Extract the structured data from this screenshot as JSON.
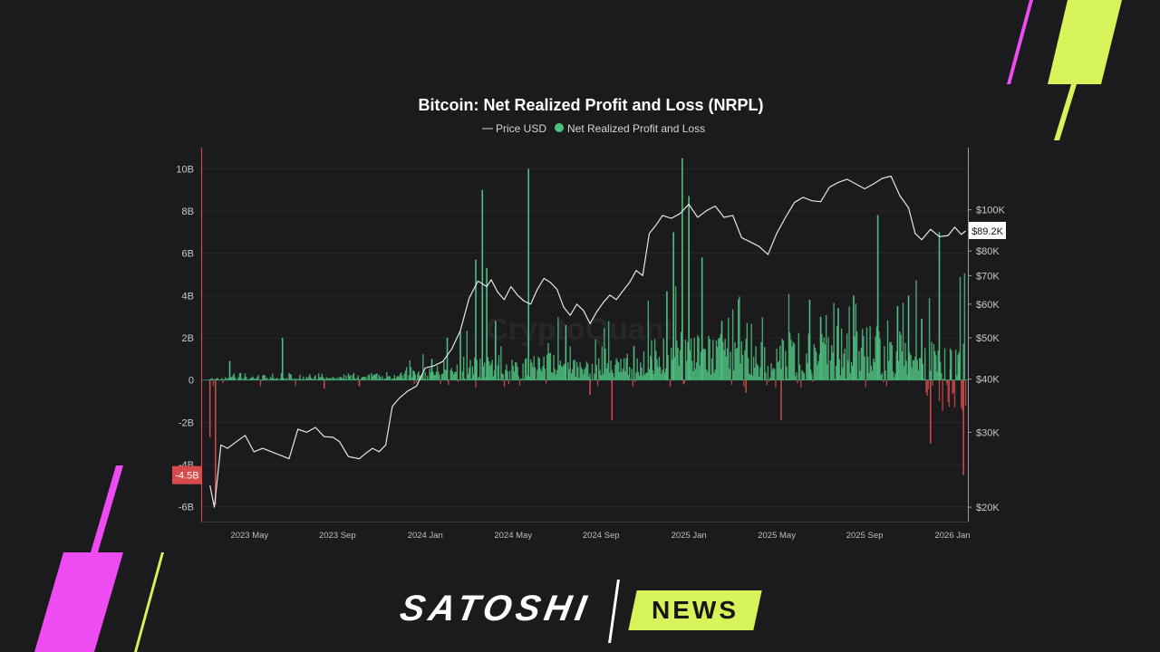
{
  "brand": {
    "name_part1": "SATOSHI",
    "name_part2": "NEWS",
    "colors": {
      "accent_lime": "#d6f35a",
      "accent_magenta": "#ee4bf2"
    }
  },
  "watermark": "CryptoQuant",
  "chart_data": {
    "type": "bar",
    "title": "Bitcoin: Net Realized Profit and Loss (NRPL)",
    "legend": [
      {
        "label": "Price USD",
        "marker": "line",
        "color": "#e5e5e5"
      },
      {
        "label": "Net Realized Profit and Loss",
        "marker": "dot",
        "color": "#4fbf7f"
      }
    ],
    "left_axis": {
      "ticks": [
        "10B",
        "8B",
        "6B",
        "4B",
        "2B",
        "0",
        "-2B",
        "-4B",
        "-6B"
      ],
      "tick_values": [
        10,
        8,
        6,
        4,
        2,
        0,
        -2,
        -4,
        -6
      ],
      "range": [
        -6.7,
        11
      ],
      "unit": "billion USD",
      "highlight_label": "-4.5B",
      "highlight_value": -4.5
    },
    "right_axis": {
      "ticks": [
        "$100K",
        "$80K",
        "$70K",
        "$60K",
        "$50K",
        "$40K",
        "$30K",
        "$20K"
      ],
      "tick_values": [
        100000,
        80000,
        70000,
        60000,
        50000,
        40000,
        30000,
        20000
      ],
      "scale": "log",
      "range": [
        18500,
        140000
      ],
      "current_price_label": "$89.2K",
      "current_price": 89200
    },
    "x_axis": {
      "ticks": [
        "2023 May",
        "2023 Sep",
        "2024 Jan",
        "2024 May",
        "2024 Sep",
        "2025 Jan",
        "2025 May",
        "2025 Sep",
        "2026 Jan"
      ],
      "tick_months": [
        4,
        8,
        12,
        16,
        20,
        24,
        28,
        32,
        36
      ],
      "month_range": [
        1.8,
        36.7
      ],
      "month_origin": "2023 Jan"
    },
    "colors": {
      "positive": "#4fbf7f",
      "negative": "#c94848",
      "price_line": "#e5e5e5"
    },
    "price_series": {
      "name": "Price USD",
      "t": [
        2.2,
        2.4,
        2.7,
        3.0,
        3.4,
        3.8,
        4.2,
        4.6,
        5.0,
        5.4,
        5.8,
        6.2,
        6.6,
        7.0,
        7.4,
        7.8,
        8.1,
        8.5,
        9.0,
        9.3,
        9.6,
        9.9,
        10.2,
        10.5,
        10.8,
        11.2,
        11.6,
        12.0,
        12.4,
        12.8,
        13.2,
        13.6,
        14.0,
        14.4,
        14.8,
        15.0,
        15.3,
        15.6,
        15.9,
        16.2,
        16.5,
        16.8,
        17.1,
        17.4,
        17.7,
        18.0,
        18.3,
        18.6,
        18.9,
        19.2,
        19.5,
        19.8,
        20.1,
        20.4,
        20.7,
        21.0,
        21.3,
        21.6,
        21.9,
        22.2,
        22.5,
        22.8,
        23.2,
        23.6,
        24.0,
        24.4,
        24.8,
        25.2,
        25.6,
        26.0,
        26.4,
        26.8,
        27.2,
        27.6,
        28.0,
        28.4,
        28.8,
        29.2,
        29.6,
        30.0,
        30.4,
        30.8,
        31.2,
        31.6,
        32.0,
        32.4,
        32.8,
        33.2,
        33.6,
        34.0,
        34.3,
        34.6,
        35.0,
        35.4,
        35.8,
        36.1,
        36.4,
        36.6
      ],
      "values": [
        22500,
        20000,
        28000,
        27500,
        28500,
        29500,
        27000,
        27500,
        27000,
        26500,
        26000,
        30500,
        30000,
        30800,
        29300,
        29200,
        28500,
        26300,
        26000,
        26800,
        27500,
        27000,
        28000,
        34500,
        36000,
        37500,
        38500,
        42500,
        43000,
        44000,
        47000,
        52000,
        62000,
        68000,
        66000,
        68500,
        64000,
        61500,
        66000,
        63000,
        61000,
        60000,
        65000,
        69000,
        67500,
        65000,
        59000,
        56500,
        60000,
        58000,
        54000,
        57500,
        60500,
        63000,
        61500,
        64500,
        67500,
        72000,
        70000,
        88000,
        92000,
        97000,
        95500,
        98000,
        103000,
        96000,
        99500,
        102000,
        96000,
        97000,
        86000,
        84000,
        82000,
        78500,
        88000,
        96000,
        104000,
        107000,
        105000,
        104500,
        113000,
        116000,
        118000,
        115000,
        112000,
        115000,
        118500,
        120000,
        108000,
        101000,
        88000,
        85000,
        90000,
        86500,
        87000,
        91000,
        87500,
        89200
      ]
    },
    "nrpl_spikes": {
      "name": "Net Realized Profit and Loss",
      "unit": "billion USD",
      "t": [
        2.2,
        2.45,
        3.1,
        5.5,
        7.4,
        9.0,
        11.5,
        12.3,
        13.0,
        13.6,
        14.3,
        14.6,
        14.8,
        15.2,
        16.7,
        18.4,
        19.5,
        20.5,
        21.5,
        22.3,
        23.0,
        23.3,
        23.7,
        24.0,
        24.6,
        25.5,
        26.6,
        28.2,
        29.5,
        30.0,
        30.8,
        31.5,
        32.6,
        33.5,
        34.0,
        34.6,
        35.0,
        35.4,
        35.9,
        36.3,
        36.5
      ],
      "values": [
        -2.7,
        -5.9,
        0.9,
        2.0,
        -0.4,
        -0.3,
        0.4,
        1.0,
        2.0,
        2.3,
        5.7,
        9.0,
        5.3,
        2.8,
        10.0,
        2.6,
        -0.7,
        -1.9,
        1.6,
        1.0,
        4.2,
        7.0,
        10.5,
        8.7,
        5.8,
        2.8,
        -0.6,
        -1.9,
        3.8,
        3.0,
        3.4,
        4.0,
        7.8,
        3.5,
        4.0,
        2.9,
        -3.0,
        7.0,
        0.5,
        0.8,
        -4.5
      ]
    }
  }
}
